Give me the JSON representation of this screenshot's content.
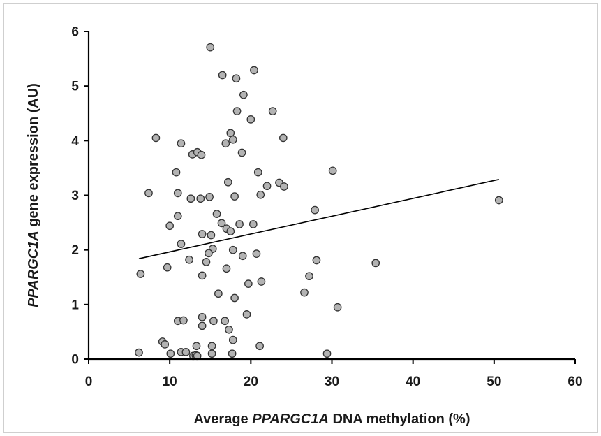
{
  "chart_data": {
    "type": "scatter",
    "xlabel_parts": [
      {
        "text": "Average ",
        "italic": false
      },
      {
        "text": "PPARGC1A",
        "italic": true
      },
      {
        "text": " DNA methylation (%)",
        "italic": false
      }
    ],
    "ylabel_parts": [
      {
        "text": "PPARGC1A",
        "italic": true
      },
      {
        "text": " gene expression (AU)",
        "italic": false
      }
    ],
    "xlim": [
      0,
      60
    ],
    "ylim": [
      0,
      6
    ],
    "x_ticks": [
      "0",
      "10",
      "20",
      "30",
      "40",
      "50",
      "60"
    ],
    "y_ticks": [
      "0",
      "1",
      "2",
      "3",
      "4",
      "5",
      "6"
    ],
    "grid": false,
    "marker_color": "#b3b3b3",
    "marker_edge_color": "#333333",
    "trendline": {
      "x": [
        6.2,
        50.6
      ],
      "y": [
        1.84,
        3.29
      ]
    },
    "points": [
      [
        15.0,
        5.71
      ],
      [
        16.5,
        5.2
      ],
      [
        18.2,
        5.14
      ],
      [
        20.4,
        5.29
      ],
      [
        19.1,
        4.84
      ],
      [
        18.3,
        4.54
      ],
      [
        20.0,
        4.39
      ],
      [
        22.7,
        4.54
      ],
      [
        8.3,
        4.05
      ],
      [
        11.4,
        3.95
      ],
      [
        17.5,
        4.14
      ],
      [
        16.9,
        3.95
      ],
      [
        17.8,
        4.02
      ],
      [
        24.0,
        4.05
      ],
      [
        12.8,
        3.75
      ],
      [
        13.4,
        3.79
      ],
      [
        13.9,
        3.74
      ],
      [
        18.9,
        3.78
      ],
      [
        10.8,
        3.42
      ],
      [
        20.9,
        3.42
      ],
      [
        30.1,
        3.45
      ],
      [
        17.2,
        3.24
      ],
      [
        22.0,
        3.17
      ],
      [
        23.5,
        3.23
      ],
      [
        24.1,
        3.16
      ],
      [
        7.4,
        3.04
      ],
      [
        11.0,
        3.04
      ],
      [
        12.6,
        2.94
      ],
      [
        13.8,
        2.94
      ],
      [
        14.9,
        2.97
      ],
      [
        18.0,
        2.98
      ],
      [
        21.2,
        3.01
      ],
      [
        27.9,
        2.73
      ],
      [
        50.6,
        2.91
      ],
      [
        11.0,
        2.62
      ],
      [
        15.8,
        2.66
      ],
      [
        10.0,
        2.44
      ],
      [
        16.4,
        2.49
      ],
      [
        17.0,
        2.39
      ],
      [
        17.5,
        2.34
      ],
      [
        18.6,
        2.47
      ],
      [
        20.3,
        2.47
      ],
      [
        14.0,
        2.29
      ],
      [
        15.1,
        2.27
      ],
      [
        11.4,
        2.11
      ],
      [
        15.3,
        2.02
      ],
      [
        17.8,
        2.0
      ],
      [
        20.7,
        1.93
      ],
      [
        14.8,
        1.94
      ],
      [
        12.4,
        1.82
      ],
      [
        14.5,
        1.78
      ],
      [
        19.0,
        1.89
      ],
      [
        28.1,
        1.81
      ],
      [
        35.4,
        1.76
      ],
      [
        9.7,
        1.68
      ],
      [
        17.0,
        1.66
      ],
      [
        6.4,
        1.56
      ],
      [
        14.0,
        1.53
      ],
      [
        27.2,
        1.52
      ],
      [
        19.7,
        1.38
      ],
      [
        21.3,
        1.42
      ],
      [
        16.0,
        1.2
      ],
      [
        18.0,
        1.12
      ],
      [
        26.6,
        1.22
      ],
      [
        19.5,
        0.82
      ],
      [
        30.7,
        0.95
      ],
      [
        14.0,
        0.77
      ],
      [
        11.0,
        0.7
      ],
      [
        11.7,
        0.71
      ],
      [
        14.0,
        0.61
      ],
      [
        15.4,
        0.7
      ],
      [
        16.8,
        0.7
      ],
      [
        17.3,
        0.54
      ],
      [
        17.8,
        0.35
      ],
      [
        9.1,
        0.32
      ],
      [
        9.4,
        0.27
      ],
      [
        13.3,
        0.24
      ],
      [
        15.2,
        0.24
      ],
      [
        21.1,
        0.24
      ],
      [
        6.2,
        0.12
      ],
      [
        10.1,
        0.1
      ],
      [
        11.4,
        0.13
      ],
      [
        12.0,
        0.13
      ],
      [
        12.9,
        0.06
      ],
      [
        13.2,
        0.07
      ],
      [
        13.4,
        0.06
      ],
      [
        15.2,
        0.1
      ],
      [
        17.7,
        0.1
      ],
      [
        29.4,
        0.1
      ]
    ]
  }
}
